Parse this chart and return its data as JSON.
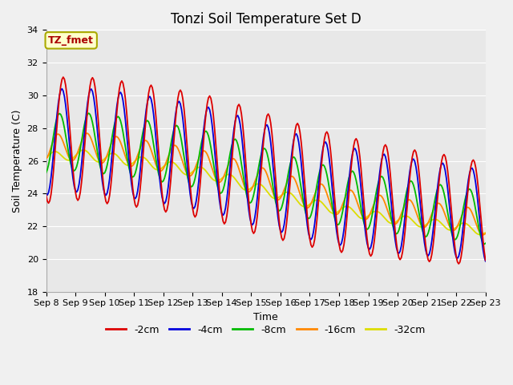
{
  "title": "Tonzi Soil Temperature Set D",
  "xlabel": "Time",
  "ylabel": "Soil Temperature (C)",
  "ylim": [
    18,
    34
  ],
  "yticks": [
    18,
    20,
    22,
    24,
    26,
    28,
    30,
    32,
    34
  ],
  "xtick_labels": [
    "Sep 8",
    "Sep 9",
    "Sep 10",
    "Sep 11",
    "Sep 12",
    "Sep 13",
    "Sep 14",
    "Sep 15",
    "Sep 16",
    "Sep 17",
    "Sep 18",
    "Sep 19",
    "Sep 20",
    "Sep 21",
    "Sep 22",
    "Sep 23"
  ],
  "legend_label": "TZ_fmet",
  "legend_box_color": "#ffffcc",
  "legend_box_edge": "#aaaa00",
  "legend_text_color": "#aa0000",
  "series_colors": {
    "-2cm": "#dd0000",
    "-4cm": "#0000dd",
    "-8cm": "#00bb00",
    "-16cm": "#ff8800",
    "-32cm": "#dddd00"
  },
  "fig_background": "#f0f0f0",
  "plot_background": "#e8e8e8",
  "grid_color": "#ffffff",
  "title_fontsize": 12,
  "axis_fontsize": 9,
  "tick_fontsize": 8
}
